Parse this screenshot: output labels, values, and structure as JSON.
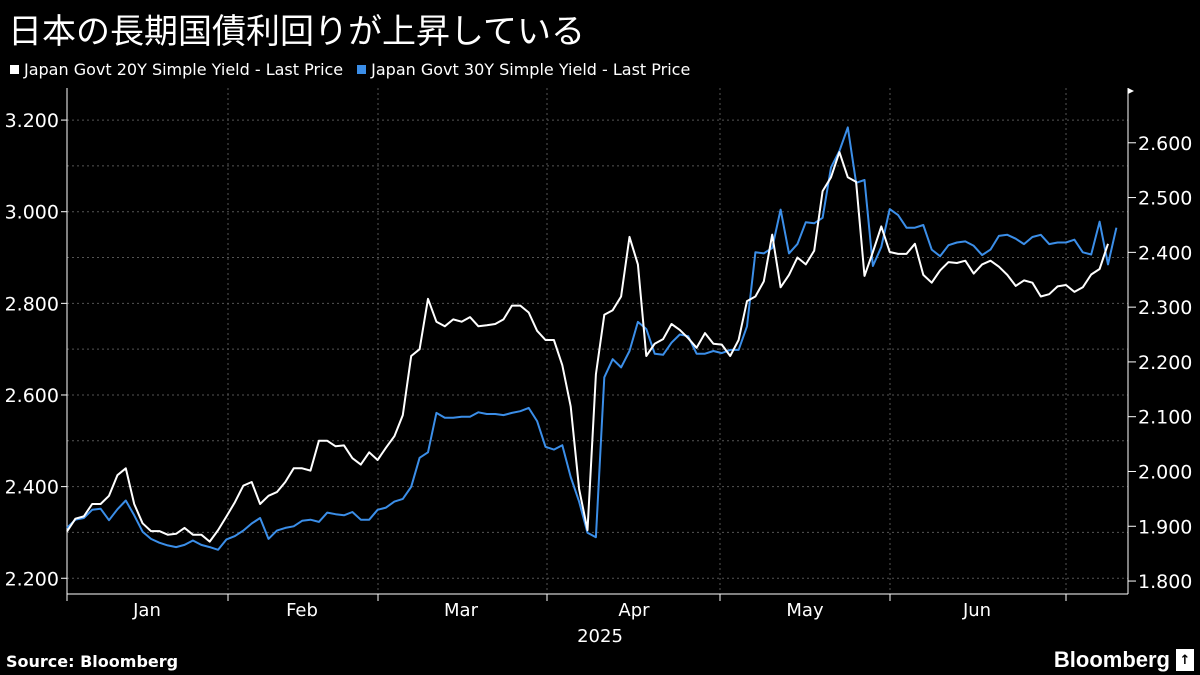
{
  "title": "日本の長期国債利回りが上昇している",
  "legend": [
    {
      "label": "Japan Govt 20Y Simple Yield - Last Price",
      "color": "#ffffff"
    },
    {
      "label": "Japan Govt 30Y Simple Yield - Last Price",
      "color": "#3b8ee8"
    }
  ],
  "source": "Source: Bloomberg",
  "brand": "Bloomberg",
  "chart_data": {
    "type": "line",
    "year_label": "2025",
    "month_labels": [
      "Jan",
      "Feb",
      "Mar",
      "Apr",
      "May",
      "Jun"
    ],
    "left_axis": {
      "ticks": [
        "2.200",
        "2.400",
        "2.600",
        "2.800",
        "3.000",
        "3.200"
      ],
      "ylim": [
        2.17,
        3.27
      ]
    },
    "right_axis": {
      "ticks": [
        "1.800",
        "1.900",
        "2.000",
        "2.100",
        "2.200",
        "2.300",
        "2.400",
        "2.500",
        "2.600"
      ],
      "ylim": [
        1.78,
        2.7
      ]
    },
    "grid": true,
    "legend_position": "top-left",
    "series": [
      {
        "name": "Japan Govt 20Y Simple Yield - Last Price",
        "axis": "left",
        "color": "#ffffff",
        "values": [
          2.302,
          2.33,
          2.335,
          2.362,
          2.362,
          2.38,
          2.425,
          2.44,
          2.362,
          2.32,
          2.303,
          2.303,
          2.295,
          2.297,
          2.31,
          2.295,
          2.295,
          2.28,
          2.305,
          2.335,
          2.366,
          2.402,
          2.41,
          2.362,
          2.38,
          2.388,
          2.41,
          2.44,
          2.44,
          2.435,
          2.5,
          2.5,
          2.488,
          2.49,
          2.462,
          2.448,
          2.475,
          2.458,
          2.485,
          2.51,
          2.556,
          2.685,
          2.7,
          2.81,
          2.76,
          2.75,
          2.765,
          2.76,
          2.77,
          2.75,
          2.752,
          2.755,
          2.765,
          2.795,
          2.795,
          2.78,
          2.74,
          2.72,
          2.72,
          2.665,
          2.575,
          2.395,
          2.305,
          2.645,
          2.775,
          2.785,
          2.815,
          2.945,
          2.885,
          2.685,
          2.712,
          2.722,
          2.755,
          2.742,
          2.724,
          2.703,
          2.735,
          2.712,
          2.71,
          2.685,
          2.72,
          2.805,
          2.815,
          2.848,
          2.95,
          2.835,
          2.862,
          2.9,
          2.885,
          2.915,
          3.045,
          3.075,
          3.13,
          3.075,
          3.065,
          2.86,
          2.912,
          2.968,
          2.912,
          2.908,
          2.908,
          2.93,
          2.862,
          2.845,
          2.872,
          2.89,
          2.888,
          2.893,
          2.865,
          2.885,
          2.893,
          2.88,
          2.862,
          2.838,
          2.85,
          2.845,
          2.815,
          2.82,
          2.837,
          2.84,
          2.825,
          2.835,
          2.863,
          2.875,
          2.93
        ]
      },
      {
        "name": "Japan Govt 30Y Simple Yield - Last Price",
        "axis": "right",
        "color": "#3b8ee8",
        "values": [
          1.897,
          1.912,
          1.915,
          1.93,
          1.932,
          1.911,
          1.931,
          1.947,
          1.92,
          1.89,
          1.877,
          1.87,
          1.865,
          1.862,
          1.866,
          1.874,
          1.866,
          1.862,
          1.857,
          1.876,
          1.882,
          1.892,
          1.905,
          1.915,
          1.877,
          1.892,
          1.897,
          1.9,
          1.91,
          1.912,
          1.908,
          1.925,
          1.922,
          1.92,
          1.926,
          1.912,
          1.912,
          1.93,
          1.934,
          1.945,
          1.95,
          1.972,
          2.025,
          2.035,
          2.107,
          2.098,
          2.098,
          2.1,
          2.1,
          2.108,
          2.105,
          2.105,
          2.103,
          2.107,
          2.11,
          2.116,
          2.092,
          2.045,
          2.04,
          2.048,
          1.99,
          1.945,
          1.888,
          1.88,
          2.172,
          2.205,
          2.19,
          2.22,
          2.273,
          2.26,
          2.215,
          2.213,
          2.235,
          2.25,
          2.247,
          2.215,
          2.215,
          2.22,
          2.216,
          2.222,
          2.222,
          2.265,
          2.4,
          2.398,
          2.408,
          2.478,
          2.398,
          2.415,
          2.455,
          2.453,
          2.463,
          2.555,
          2.585,
          2.628,
          2.527,
          2.532,
          2.375,
          2.41,
          2.479,
          2.468,
          2.445,
          2.445,
          2.45,
          2.405,
          2.393,
          2.413,
          2.418,
          2.42,
          2.412,
          2.395,
          2.405,
          2.43,
          2.432,
          2.425,
          2.415,
          2.428,
          2.432,
          2.415,
          2.418,
          2.418,
          2.423,
          2.4,
          2.396,
          2.456,
          2.378,
          2.445
        ]
      }
    ]
  }
}
